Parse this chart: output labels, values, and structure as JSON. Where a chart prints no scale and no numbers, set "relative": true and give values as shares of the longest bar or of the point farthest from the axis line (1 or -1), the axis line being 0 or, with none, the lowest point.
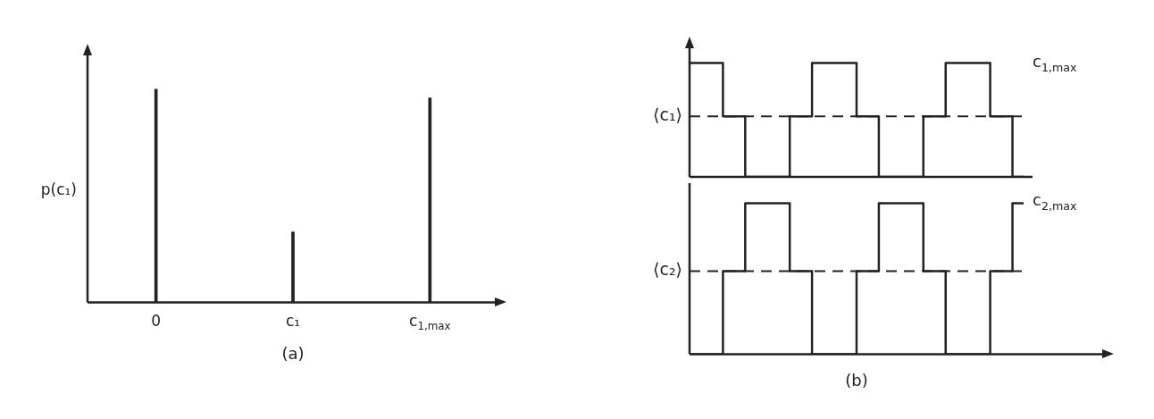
{
  "chart_data": [
    {
      "type": "bar",
      "title": "(a)",
      "ylabel": "p(c₁)",
      "categories": [
        "0",
        "c₁",
        "c$_{1,max}$"
      ],
      "values": [
        1,
        0.33,
        0.96
      ],
      "color": "#222222",
      "relative": true
    },
    {
      "type": "step",
      "relative": true,
      "categories": [
        null,
        null,
        null,
        null,
        null,
        null,
        null,
        null,
        null,
        null,
        null,
        null,
        null,
        null,
        null,
        null
      ],
      "series": [
        {
          "color": "#222222",
          "values": [
            1,
            1,
            0.53,
            0,
            0,
            0.53,
            1,
            1,
            0.53,
            0,
            0,
            0.53,
            1,
            1,
            0.53,
            0
          ]
        }
      ],
      "ref_lines": [
        {
          "axis": "y",
          "value": 0.53,
          "label": "⟨c₁⟩",
          "line_style": "dashed",
          "color": "#222222"
        }
      ],
      "annotations": [
        "c$_{1,max}$"
      ]
    },
    {
      "type": "step",
      "title": "(b)",
      "relative": true,
      "categories": [
        null,
        null,
        null,
        null,
        null,
        null,
        null,
        null,
        null,
        null,
        null,
        null,
        null,
        null,
        null,
        null
      ],
      "series": [
        {
          "color": "#222222",
          "values": [
            0,
            0,
            0.55,
            1,
            1,
            0.55,
            0,
            0,
            0.55,
            1,
            1,
            0.55,
            0,
            0,
            0.55,
            1
          ]
        }
      ],
      "ref_lines": [
        {
          "axis": "y",
          "value": 0.55,
          "label": "⟨c₂⟩",
          "line_style": "dashed",
          "color": "#222222"
        }
      ],
      "annotations": [
        "c$_{2,max}$"
      ]
    }
  ]
}
